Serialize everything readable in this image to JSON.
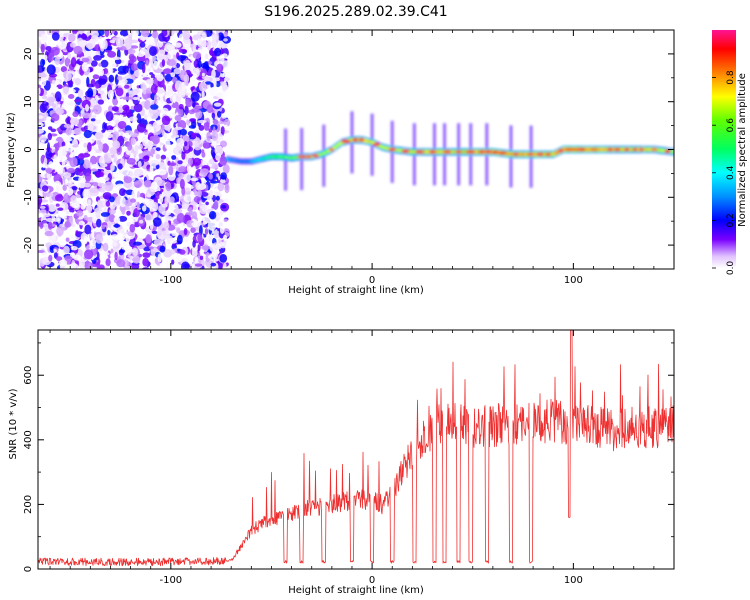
{
  "title": "S196.2025.289.02.39.C41",
  "colors": {
    "snr_line": "#ee3030",
    "frame": "#000000",
    "background": "#ffffff"
  },
  "chart_data": [
    {
      "type": "heatmap",
      "name": "spectrogram",
      "xlabel": "Height of straight line (km)",
      "ylabel": "Frequency (Hz)",
      "xlim": [
        -166,
        150
      ],
      "ylim": [
        -25,
        25
      ],
      "xticks": [
        -100,
        0,
        100
      ],
      "yticks": [
        -20,
        -10,
        0,
        10,
        20
      ],
      "colorbar": {
        "label": "Normalized spectral amplitude",
        "range": [
          0.0,
          1.0
        ],
        "ticks": [
          0.0,
          0.2,
          0.4,
          0.6,
          0.8
        ],
        "colormap": [
          "#ffffff",
          "#d9b3ff",
          "#6a00ff",
          "#0000ff",
          "#00ffff",
          "#00ff00",
          "#ffff00",
          "#ff8000",
          "#ff0000",
          "#ff1493"
        ]
      },
      "noise_region_x": [
        -166,
        -72
      ],
      "signal_track": {
        "x": [
          -72,
          -65,
          -60,
          -55,
          -50,
          -45,
          -40,
          -35,
          -30,
          -25,
          -20,
          -15,
          -10,
          -5,
          0,
          5,
          10,
          20,
          30,
          40,
          50,
          60,
          70,
          80,
          90,
          95,
          100,
          110,
          120,
          130,
          140,
          150
        ],
        "frequency": [
          -2,
          -2.5,
          -2.5,
          -2,
          -1.5,
          -1.5,
          -1.8,
          -1.5,
          -1.5,
          -1,
          0,
          1.5,
          2,
          2,
          1.5,
          0.5,
          0,
          -0.5,
          -0.5,
          -0.5,
          -0.5,
          -0.5,
          -1,
          -1,
          -1,
          0,
          0,
          0,
          0,
          0,
          0,
          -0.5
        ],
        "amplitude": [
          0.35,
          0.3,
          0.35,
          0.45,
          0.55,
          0.6,
          0.6,
          0.65,
          0.7,
          0.65,
          0.7,
          0.7,
          0.75,
          0.8,
          0.75,
          0.7,
          0.7,
          0.75,
          0.8,
          0.75,
          0.8,
          0.85,
          0.85,
          0.85,
          0.8,
          0.9,
          0.95,
          0.85,
          0.8,
          0.8,
          0.75,
          0.7
        ]
      }
    },
    {
      "type": "line",
      "name": "snr",
      "xlabel": "Height of straight line (km)",
      "ylabel": "SNR (10 * v/v)",
      "xlim": [
        -166,
        150
      ],
      "ylim": [
        0,
        740
      ],
      "xticks": [
        -100,
        0,
        100
      ],
      "yticks": [
        0,
        200,
        400,
        600
      ],
      "baseline": {
        "x": [
          -166,
          -100,
          -70,
          -65,
          -60,
          -55,
          -50,
          -45,
          -40,
          -35,
          -30,
          -25,
          -20,
          -15,
          -10,
          -5,
          0,
          5,
          10,
          15,
          20,
          25,
          30,
          35,
          40,
          45,
          50,
          60,
          70,
          80,
          90,
          95,
          100,
          110,
          120,
          130,
          140,
          150
        ],
        "y": [
          22,
          22,
          26,
          70,
          120,
          140,
          150,
          160,
          170,
          185,
          190,
          195,
          200,
          205,
          215,
          215,
          210,
          200,
          230,
          300,
          360,
          400,
          430,
          450,
          460,
          440,
          440,
          445,
          450,
          450,
          460,
          455,
          445,
          440,
          430,
          440,
          440,
          440
        ]
      },
      "dropouts_x": [
        -43,
        -35,
        -24,
        -10,
        0,
        10,
        21,
        31,
        36,
        43,
        49,
        57,
        69,
        79
      ],
      "spike_x": [
        99
      ],
      "spike_y": [
        740
      ],
      "dip_x": [
        98
      ],
      "dip_y": [
        160
      ]
    }
  ]
}
